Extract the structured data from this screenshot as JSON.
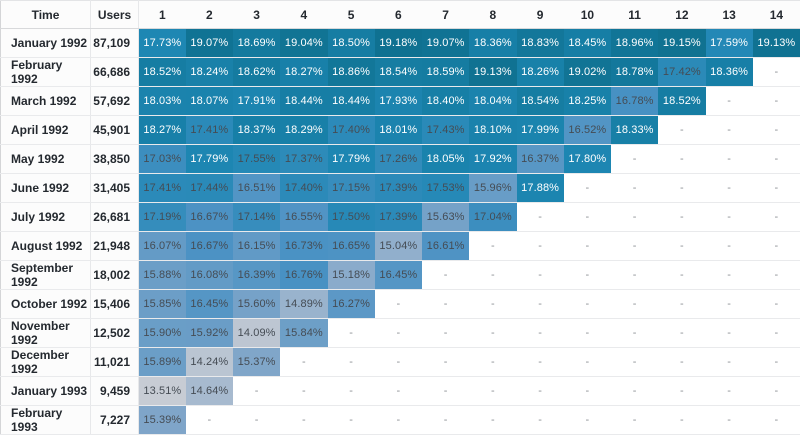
{
  "table": {
    "columns": {
      "time_label": "Time",
      "users_label": "Users",
      "period_labels": [
        "1",
        "2",
        "3",
        "4",
        "5",
        "6",
        "7",
        "8",
        "9",
        "10",
        "11",
        "12",
        "13",
        "14"
      ]
    },
    "empty_cell_text": "-",
    "rows": [
      {
        "time": "January 1992",
        "users": "87,109",
        "values": [
          17.73,
          19.07,
          18.69,
          19.04,
          18.5,
          19.18,
          19.07,
          18.36,
          18.83,
          18.45,
          18.96,
          19.15,
          17.59,
          19.13
        ]
      },
      {
        "time": "February 1992",
        "users": "66,686",
        "values": [
          18.52,
          18.24,
          18.62,
          18.27,
          18.86,
          18.54,
          18.59,
          19.13,
          18.26,
          19.02,
          18.78,
          17.42,
          18.36,
          null
        ]
      },
      {
        "time": "March 1992",
        "users": "57,692",
        "values": [
          18.03,
          18.07,
          17.91,
          18.44,
          18.44,
          17.93,
          18.4,
          18.04,
          18.54,
          18.25,
          16.78,
          18.52,
          null,
          null
        ]
      },
      {
        "time": "April 1992",
        "users": "45,901",
        "values": [
          18.27,
          17.41,
          18.37,
          18.29,
          17.4,
          18.01,
          17.43,
          18.1,
          17.99,
          16.52,
          18.33,
          null,
          null,
          null
        ]
      },
      {
        "time": "May 1992",
        "users": "38,850",
        "values": [
          17.03,
          17.79,
          17.55,
          17.37,
          17.79,
          17.26,
          18.05,
          17.92,
          16.37,
          17.8,
          null,
          null,
          null,
          null
        ]
      },
      {
        "time": "June 1992",
        "users": "31,405",
        "values": [
          17.41,
          17.44,
          16.51,
          17.4,
          17.15,
          17.39,
          17.53,
          15.96,
          17.88,
          null,
          null,
          null,
          null,
          null
        ]
      },
      {
        "time": "July 1992",
        "users": "26,681",
        "values": [
          17.19,
          16.67,
          17.14,
          16.55,
          17.5,
          17.39,
          15.63,
          17.04,
          null,
          null,
          null,
          null,
          null,
          null
        ]
      },
      {
        "time": "August 1992",
        "users": "21,948",
        "values": [
          16.07,
          16.67,
          16.15,
          16.73,
          16.65,
          15.04,
          16.61,
          null,
          null,
          null,
          null,
          null,
          null,
          null
        ]
      },
      {
        "time": "September 1992",
        "users": "18,002",
        "values": [
          15.88,
          16.08,
          16.39,
          16.76,
          15.18,
          16.45,
          null,
          null,
          null,
          null,
          null,
          null,
          null,
          null
        ]
      },
      {
        "time": "October 1992",
        "users": "15,406",
        "values": [
          15.85,
          16.45,
          15.6,
          14.89,
          16.27,
          null,
          null,
          null,
          null,
          null,
          null,
          null,
          null,
          null
        ]
      },
      {
        "time": "November 1992",
        "users": "12,502",
        "values": [
          15.9,
          15.92,
          14.09,
          15.84,
          null,
          null,
          null,
          null,
          null,
          null,
          null,
          null,
          null,
          null
        ]
      },
      {
        "time": "December 1992",
        "users": "11,021",
        "values": [
          15.89,
          14.24,
          15.37,
          null,
          null,
          null,
          null,
          null,
          null,
          null,
          null,
          null,
          null,
          null
        ]
      },
      {
        "time": "January 1993",
        "users": "9,459",
        "values": [
          13.51,
          14.64,
          null,
          null,
          null,
          null,
          null,
          null,
          null,
          null,
          null,
          null,
          null,
          null
        ]
      },
      {
        "time": "February 1993",
        "users": "7,227",
        "values": [
          15.39,
          null,
          null,
          null,
          null,
          null,
          null,
          null,
          null,
          null,
          null,
          null,
          null,
          null
        ]
      }
    ]
  },
  "heatmap": {
    "value_suffix": "%",
    "color_stops": [
      [
        13.4,
        "#c9cdd4"
      ],
      [
        14.3,
        "#b9c4d2"
      ],
      [
        15.4,
        "#7ea5c9"
      ],
      [
        16.7,
        "#4b92c4"
      ],
      [
        17.7,
        "#1e87b4"
      ],
      [
        18.4,
        "#177fa6"
      ],
      [
        19.2,
        "#0f7190"
      ]
    ],
    "white_text_threshold": 17.57,
    "white_text_color": "#ffffff",
    "dark_text_color": "#454c54",
    "empty_text_color": "#8d9196",
    "label_text_color": "#24292f"
  }
}
